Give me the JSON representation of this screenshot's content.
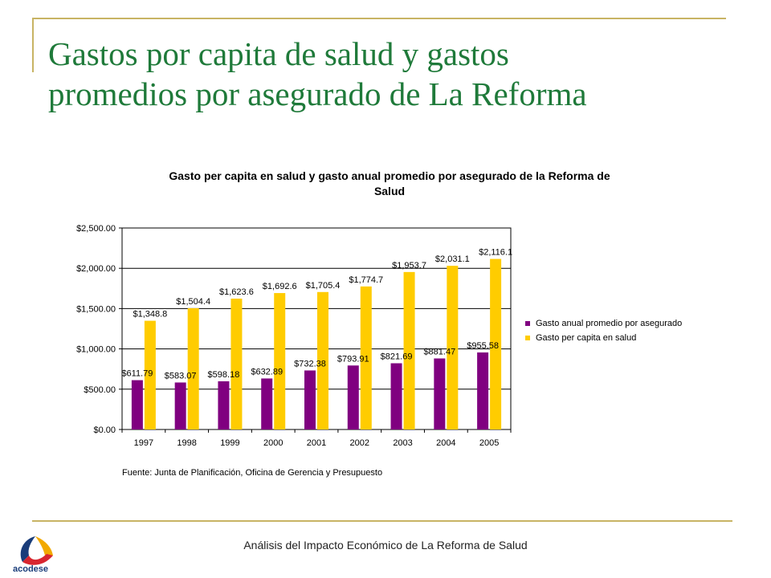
{
  "slide": {
    "title_line1": "Gastos por capita de salud y gastos",
    "title_line2": "promedios por asegurado de La Reforma",
    "source": "Fuente: Junta de Planificación, Oficina de Gerencia y Presupuesto",
    "footer": "Análisis del Impacto Económico de La Reforma de Salud",
    "logo_text": "acodese"
  },
  "colors": {
    "title": "#1f7a3a",
    "rule": "#c8b464",
    "series_1": "#800080",
    "series_2": "#ffcc00"
  },
  "chart_data": {
    "type": "bar",
    "title_line1": "Gasto per capita en salud y gasto anual promedio por asegurado de la Reforma de",
    "title_line2": "Salud",
    "categories": [
      "1997",
      "1998",
      "1999",
      "2000",
      "2001",
      "2002",
      "2003",
      "2004",
      "2005"
    ],
    "series": [
      {
        "name": "Gasto anual promedio por asegurado",
        "color": "#800080",
        "values": [
          611.79,
          583.07,
          598.18,
          632.89,
          732.38,
          793.91,
          821.69,
          881.47,
          955.58
        ],
        "labels": [
          "$611.79",
          "$583.07",
          "$598.18",
          "$632.89",
          "$732.38",
          "$793.91",
          "$821.69",
          "$881.47",
          "$955.58"
        ]
      },
      {
        "name": "Gasto per capita en salud",
        "color": "#ffcc00",
        "values": [
          1348.8,
          1504.4,
          1623.6,
          1692.6,
          1705.4,
          1774.7,
          1953.7,
          2031.1,
          2116.1
        ],
        "labels": [
          "$1,348.8",
          "$1,504.4",
          "$1,623.6",
          "$1,692.6",
          "$1,705.4",
          "$1,774.7",
          "$1,953.7",
          "$2,031.1",
          "$2,116.1"
        ]
      }
    ],
    "ylim": [
      0,
      2500
    ],
    "yticks": [
      0,
      500,
      1000,
      1500,
      2000,
      2500
    ],
    "ytick_labels": [
      "$0.00",
      "$500.00",
      "$1,000.00",
      "$1,500.00",
      "$2,000.00",
      "$2,500.00"
    ],
    "grid": true,
    "legend_position": "right"
  }
}
